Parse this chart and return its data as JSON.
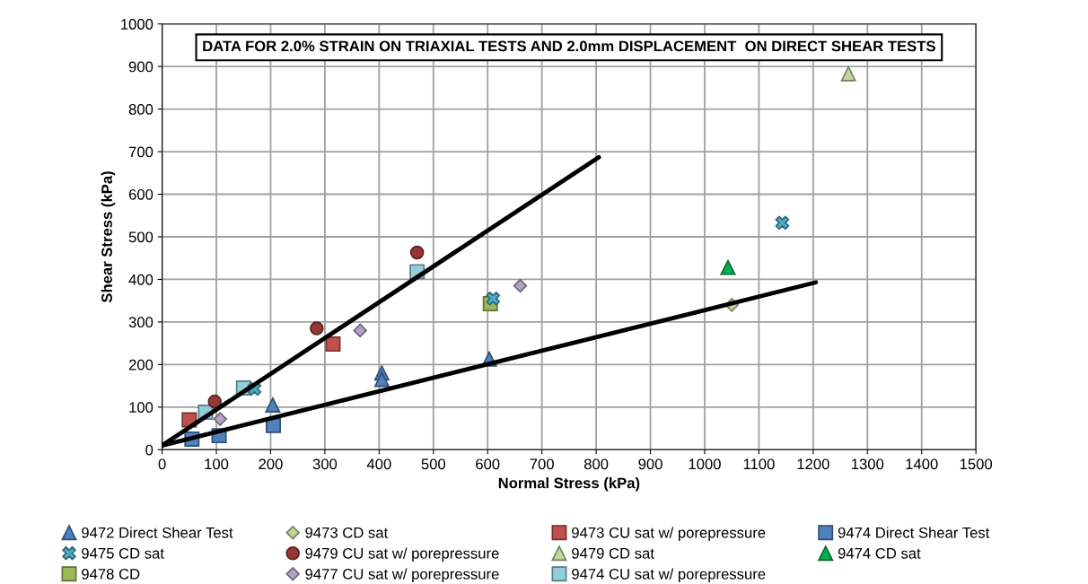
{
  "chart_data": {
    "type": "scatter",
    "title": "DATA FOR 2.0% STRAIN ON TRIAXIAL TESTS AND 2.0mm DISPLACEMENT  ON DIRECT SHEAR TESTS",
    "xlabel": "Normal Stress (kPa)",
    "ylabel": "Shear Stress (kPa)",
    "xlim": [
      0,
      1500
    ],
    "xticks": [
      0,
      100,
      200,
      300,
      400,
      500,
      600,
      700,
      800,
      900,
      1000,
      1100,
      1200,
      1300,
      1400,
      1500
    ],
    "ylim": [
      0,
      1000
    ],
    "yticks": [
      0,
      100,
      200,
      300,
      400,
      500,
      600,
      700,
      800,
      900,
      1000
    ],
    "grid": true,
    "legend": "bottom",
    "series": [
      {
        "name": "9472 Direct Shear Test",
        "color": "#4f81bd",
        "marker": "triangle",
        "x": [
          204,
          405,
          405,
          603
        ],
        "values": [
          105,
          180,
          165,
          213
        ]
      },
      {
        "name": "9473 CD sat",
        "color": "#c3d69b",
        "marker": "diamond",
        "x": [
          1050
        ],
        "values": [
          340
        ]
      },
      {
        "name": "9473 CU sat w/ porepressure",
        "color": "#c0504d",
        "marker": "square",
        "x": [
          50,
          315
        ],
        "values": [
          70,
          248
        ]
      },
      {
        "name": "9474 Direct Shear Test",
        "color": "#4f81bd",
        "marker": "square",
        "x": [
          55,
          105,
          205
        ],
        "values": [
          25,
          33,
          57
        ]
      },
      {
        "name": "9475 CD sat",
        "color": "#4bacc6",
        "marker": "cross",
        "x": [
          170,
          610,
          1143
        ],
        "values": [
          143,
          355,
          533
        ]
      },
      {
        "name": "9479 CU sat w/ porepressure",
        "color": "#953735",
        "marker": "circle",
        "x": [
          97,
          285,
          470
        ],
        "values": [
          113,
          285,
          463
        ]
      },
      {
        "name": "9479 CD sat",
        "color": "#c3d69b",
        "marker": "triangle",
        "x": [
          1265
        ],
        "values": [
          883
        ]
      },
      {
        "name": "9474 CD sat",
        "color": "#00b050",
        "marker": "triangle",
        "x": [
          1043
        ],
        "values": [
          428
        ]
      },
      {
        "name": "9478 CD",
        "color": "#9bbb59",
        "marker": "square",
        "x": [
          605
        ],
        "values": [
          343
        ]
      },
      {
        "name": "9477 CU sat w/ porepressure",
        "color": "#b3a2c7",
        "marker": "diamond",
        "x": [
          107,
          365,
          660
        ],
        "values": [
          72,
          280,
          385
        ]
      },
      {
        "name": "9474 CU sat w/ porepressure",
        "color": "#92cddc",
        "marker": "square",
        "x": [
          80,
          150,
          470
        ],
        "values": [
          88,
          145,
          418
        ]
      },
      {
        "type": "line",
        "color": "#000000",
        "x": [
          0,
          805
        ],
        "values": [
          10,
          687
        ]
      },
      {
        "type": "line",
        "color": "#000000",
        "x": [
          0,
          1205
        ],
        "values": [
          10,
          393
        ]
      }
    ]
  }
}
